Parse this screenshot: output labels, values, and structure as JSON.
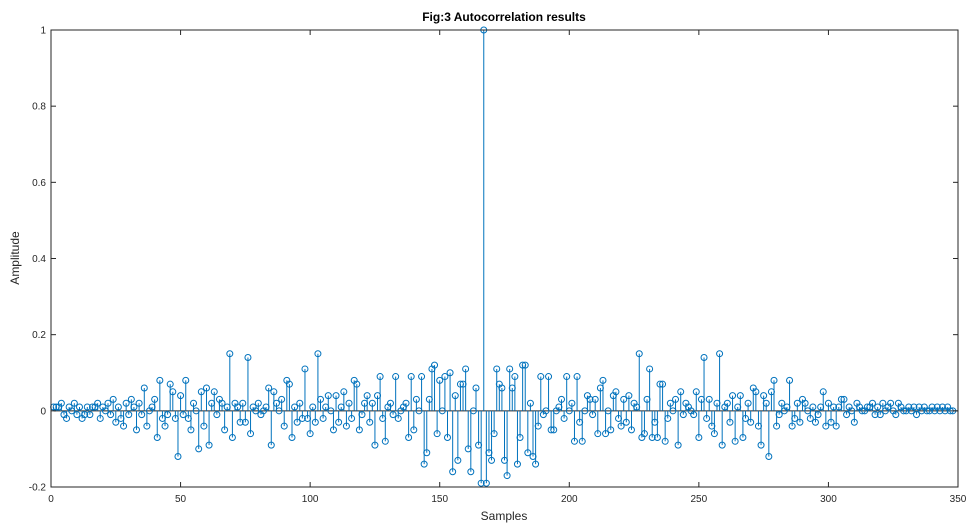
{
  "chart_data": {
    "type": "stem",
    "title": "Fig:3 Autocorrelation results",
    "xlabel": "Samples",
    "ylabel": "Amplitude",
    "xlim": [
      0,
      350
    ],
    "ylim": [
      -0.2,
      1
    ],
    "xticks": [
      0,
      50,
      100,
      150,
      200,
      250,
      300,
      350
    ],
    "yticks": [
      -0.2,
      0,
      0.2,
      0.4,
      0.6,
      0.8,
      1
    ],
    "ytick_labels": [
      "-0.2",
      "0",
      "0.2",
      "0.4",
      "0.6",
      "0.8",
      "1"
    ],
    "grid": false,
    "legend": "none",
    "series": [
      {
        "x_start": 1,
        "x_step": 1,
        "values": [
          0.01,
          0.01,
          0.01,
          0.02,
          -0.01,
          -0.02,
          0.01,
          0.0,
          0.02,
          -0.01,
          0.01,
          -0.02,
          -0.01,
          0.01,
          -0.01,
          0.01,
          0.01,
          0.02,
          -0.02,
          0.01,
          0.0,
          0.02,
          -0.01,
          0.03,
          -0.03,
          0.01,
          -0.02,
          -0.04,
          0.02,
          -0.01,
          0.03,
          0.01,
          -0.05,
          0.02,
          -0.01,
          0.06,
          -0.04,
          0.0,
          0.01,
          0.03,
          -0.07,
          0.08,
          -0.02,
          -0.04,
          -0.01,
          0.07,
          0.05,
          -0.02,
          -0.12,
          0.04,
          -0.01,
          0.08,
          -0.02,
          -0.05,
          0.02,
          0.0,
          -0.1,
          0.05,
          -0.04,
          0.06,
          -0.09,
          0.02,
          0.05,
          -0.01,
          0.03,
          0.02,
          -0.05,
          0.01,
          0.15,
          -0.07,
          0.02,
          0.01,
          -0.03,
          0.02,
          -0.03,
          0.14,
          -0.06,
          0.01,
          0.0,
          0.02,
          -0.01,
          0.0,
          0.01,
          0.06,
          -0.09,
          0.05,
          0.02,
          0.0,
          0.03,
          -0.04,
          0.08,
          0.07,
          -0.07,
          0.01,
          -0.03,
          0.02,
          -0.02,
          0.11,
          -0.02,
          -0.06,
          0.01,
          -0.03,
          0.15,
          0.03,
          -0.02,
          0.01,
          0.04,
          0.0,
          -0.05,
          0.04,
          -0.03,
          0.01,
          0.05,
          -0.04,
          0.02,
          -0.02,
          0.08,
          0.07,
          -0.05,
          -0.01,
          0.02,
          0.04,
          -0.03,
          0.02,
          -0.09,
          0.04,
          0.09,
          -0.02,
          -0.08,
          0.01,
          0.02,
          -0.01,
          0.09,
          -0.02,
          0.0,
          0.01,
          0.02,
          -0.07,
          0.09,
          -0.05,
          0.03,
          0.0,
          0.09,
          -0.14,
          -0.11,
          0.03,
          0.11,
          0.12,
          -0.06,
          0.08,
          0.0,
          0.09,
          -0.07,
          0.1,
          -0.16,
          0.04,
          -0.13,
          0.07,
          0.07,
          0.11,
          -0.1,
          -0.16,
          0.0,
          0.06,
          -0.09,
          -0.19,
          1.0,
          -0.19,
          -0.11,
          -0.13,
          -0.06,
          0.11,
          0.07,
          0.06,
          -0.13,
          -0.17,
          0.11,
          0.06,
          0.09,
          -0.14,
          -0.07,
          0.12,
          0.12,
          -0.11,
          0.02,
          -0.12,
          -0.14,
          -0.04,
          0.09,
          -0.01,
          0.0,
          0.09,
          -0.05,
          -0.05,
          0.0,
          0.01,
          0.03,
          -0.02,
          0.09,
          0.0,
          0.02,
          -0.08,
          0.09,
          -0.03,
          -0.08,
          0.0,
          0.04,
          0.03,
          -0.01,
          0.03,
          -0.06,
          0.06,
          0.08,
          -0.06,
          0.0,
          -0.05,
          0.04,
          0.05,
          -0.02,
          -0.04,
          0.03,
          -0.03,
          0.04,
          -0.05,
          0.02,
          0.01,
          0.15,
          -0.07,
          -0.06,
          0.03,
          0.11,
          -0.07,
          -0.03,
          -0.07,
          0.07,
          0.07,
          -0.08,
          -0.02,
          0.02,
          0.0,
          0.03,
          -0.09,
          0.05,
          -0.01,
          0.02,
          0.01,
          0.0,
          -0.01,
          0.05,
          -0.07,
          0.03,
          0.14,
          -0.02,
          0.03,
          -0.04,
          -0.06,
          0.02,
          0.15,
          -0.09,
          0.01,
          0.02,
          -0.03,
          0.04,
          -0.08,
          0.01,
          0.04,
          -0.07,
          -0.02,
          0.02,
          -0.03,
          0.06,
          0.05,
          -0.04,
          -0.09,
          0.04,
          0.02,
          -0.12,
          0.05,
          0.08,
          -0.04,
          -0.01,
          0.02,
          0.0,
          0.01,
          0.08,
          -0.04,
          -0.02,
          0.02,
          -0.03,
          0.03,
          0.02,
          0.0,
          -0.02,
          0.01,
          -0.03,
          -0.01,
          0.01,
          0.05,
          -0.04,
          0.02,
          -0.03,
          0.01,
          -0.04,
          0.01,
          0.03,
          0.03,
          -0.01,
          0.01,
          0.0,
          -0.03,
          0.02,
          0.01,
          0.0,
          0.0,
          0.01,
          0.01,
          0.02,
          -0.01,
          0.01,
          -0.01,
          0.02,
          0.0,
          0.01,
          0.02,
          0.0,
          -0.01,
          0.02,
          0.01,
          0.0,
          0.0,
          0.01,
          0.0,
          0.01,
          -0.01,
          0.01,
          0.0,
          0.01,
          0.0,
          0.0,
          0.01,
          0.0,
          0.01,
          0.0,
          0.01,
          0.0,
          0.01,
          0.0,
          0.0
        ],
        "color": "#0072BD"
      }
    ]
  },
  "colors": {
    "stem": "#0072BD",
    "axes": "#262626",
    "baseline": "#262626",
    "background": "#ffffff"
  }
}
